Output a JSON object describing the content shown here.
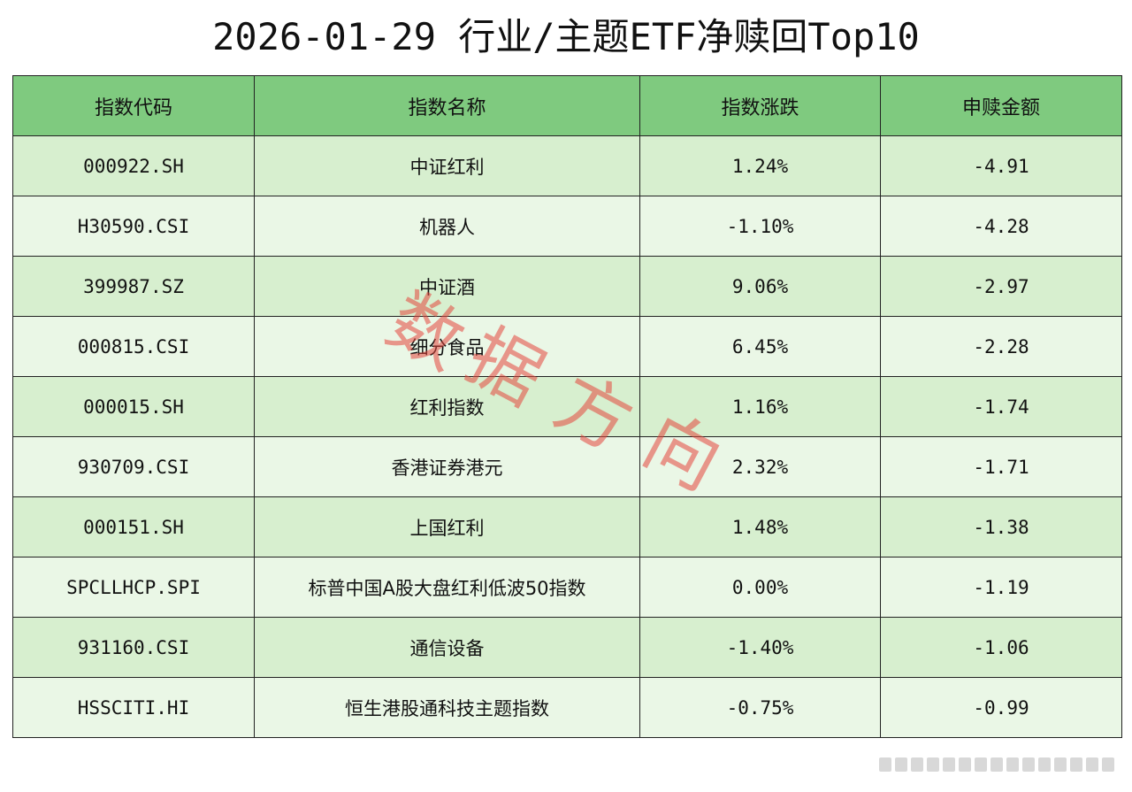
{
  "title": "2026-01-29 行业/主题ETF净赎回Top10",
  "table": {
    "headers": [
      "指数代码",
      "指数名称",
      "指数涨跌",
      "申赎金额"
    ],
    "rows": [
      {
        "code": "000922.SH",
        "name": "中证红利",
        "change": "1.24%",
        "amount": "-4.91"
      },
      {
        "code": "H30590.CSI",
        "name": "机器人",
        "change": "-1.10%",
        "amount": "-4.28"
      },
      {
        "code": "399987.SZ",
        "name": "中证酒",
        "change": "9.06%",
        "amount": "-2.97"
      },
      {
        "code": "000815.CSI",
        "name": "细分食品",
        "change": "6.45%",
        "amount": "-2.28"
      },
      {
        "code": "000015.SH",
        "name": "红利指数",
        "change": "1.16%",
        "amount": "-1.74"
      },
      {
        "code": "930709.CSI",
        "name": "香港证券港元",
        "change": "2.32%",
        "amount": "-1.71"
      },
      {
        "code": "000151.SH",
        "name": "上国红利",
        "change": "1.48%",
        "amount": "-1.38"
      },
      {
        "code": "SPCLLHCP.SPI",
        "name": "标普中国A股大盘红利低波50指数",
        "change": "0.00%",
        "amount": "-1.19"
      },
      {
        "code": "931160.CSI",
        "name": "通信设备",
        "change": "-1.40%",
        "amount": "-1.06"
      },
      {
        "code": "HSSCITI.HI",
        "name": "恒生港股通科技主题指数",
        "change": "-0.75%",
        "amount": "-0.99"
      }
    ]
  },
  "watermark": {
    "chars": [
      "数",
      "据",
      "方",
      "向"
    ],
    "color": "#e4463c"
  },
  "colors": {
    "header_bg": "#7fca7f",
    "row_odd_bg": "#d7efcf",
    "row_even_bg": "#eaf7e6"
  }
}
